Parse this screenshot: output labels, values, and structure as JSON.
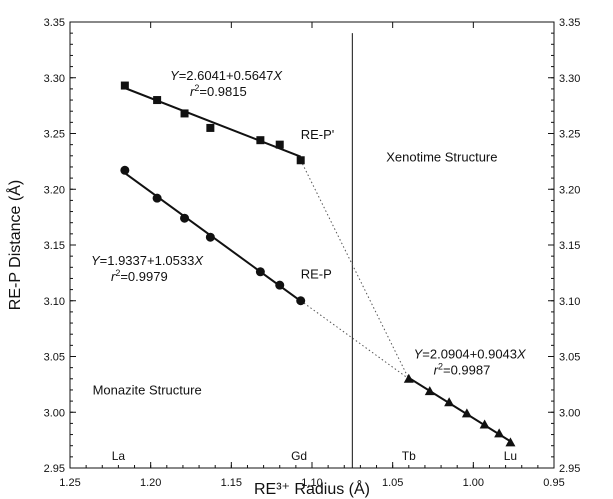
{
  "chart_data": {
    "type": "scatter",
    "xlabel": "RE³⁺ Radius (Å)",
    "ylabel": "RE-P Distance (Å)",
    "xlim": [
      1.25,
      0.95
    ],
    "ylim": [
      2.95,
      3.35
    ],
    "x_reversed": true,
    "right_axis_mirrored": true,
    "x_ticks": [
      "1.25",
      "1.20",
      "1.15",
      "1.10",
      "1.05",
      "1.00",
      "0.95"
    ],
    "y_ticks": [
      "2.95",
      "3.00",
      "3.05",
      "3.10",
      "3.15",
      "3.20",
      "3.25",
      "3.30",
      "3.35"
    ],
    "series": [
      {
        "name": "RE-P'",
        "marker": "square",
        "points": [
          {
            "x": 1.216,
            "y": 3.293
          },
          {
            "x": 1.196,
            "y": 3.28
          },
          {
            "x": 1.179,
            "y": 3.268
          },
          {
            "x": 1.163,
            "y": 3.255
          },
          {
            "x": 1.132,
            "y": 3.244
          },
          {
            "x": 1.12,
            "y": 3.24
          },
          {
            "x": 1.107,
            "y": 3.226
          }
        ],
        "fit": {
          "intercept": 2.6041,
          "slope": 0.5647,
          "x_range": [
            1.216,
            1.107
          ]
        }
      },
      {
        "name": "RE-P",
        "marker": "circle",
        "points": [
          {
            "x": 1.216,
            "y": 3.217
          },
          {
            "x": 1.196,
            "y": 3.192
          },
          {
            "x": 1.179,
            "y": 3.174
          },
          {
            "x": 1.163,
            "y": 3.157
          },
          {
            "x": 1.132,
            "y": 3.126
          },
          {
            "x": 1.12,
            "y": 3.114
          },
          {
            "x": 1.107,
            "y": 3.1
          }
        ],
        "fit": {
          "intercept": 1.9337,
          "slope": 1.0533,
          "x_range": [
            1.216,
            1.107
          ]
        }
      },
      {
        "name": "",
        "marker": "triangle",
        "points": [
          {
            "x": 1.04,
            "y": 3.03
          },
          {
            "x": 1.027,
            "y": 3.019
          },
          {
            "x": 1.015,
            "y": 3.009
          },
          {
            "x": 1.004,
            "y": 2.999
          },
          {
            "x": 0.993,
            "y": 2.989
          },
          {
            "x": 0.984,
            "y": 2.981
          },
          {
            "x": 0.977,
            "y": 2.973
          }
        ],
        "fit": {
          "intercept": 2.0904,
          "slope": 0.9043,
          "x_range": [
            1.04,
            0.977
          ]
        }
      }
    ],
    "dotted_connectors": [
      {
        "from": {
          "x": 1.107,
          "y": 3.226
        },
        "to": {
          "x": 1.04,
          "y": 3.03
        }
      },
      {
        "from": {
          "x": 1.107,
          "y": 3.1
        },
        "to": {
          "x": 1.04,
          "y": 3.03
        }
      }
    ],
    "boundary_line": {
      "x": 1.075,
      "y_range": [
        2.95,
        3.34
      ]
    },
    "equations": [
      {
        "y_prefix": "Y",
        "rhs_a": "=2.6041+0.5647",
        "x_var": "X",
        "r2": "=0.9815",
        "x": 1.188,
        "y": 3.298
      },
      {
        "y_prefix": "Y",
        "rhs_a": "=1.9337+1.0533",
        "x_var": "X",
        "r2": "=0.9979",
        "x": 1.237,
        "y": 3.132
      },
      {
        "y_prefix": "Y",
        "rhs_a": "=2.0904+0.9043",
        "x_var": "X",
        "r2": "=0.9987",
        "x": 1.037,
        "y": 3.048
      }
    ],
    "annotations": [
      {
        "text": "RE-P'",
        "x": 1.107,
        "y": 3.245
      },
      {
        "text": "RE-P",
        "x": 1.107,
        "y": 3.12
      },
      {
        "text": "Xenotime Structure",
        "x": 1.054,
        "y": 3.225
      },
      {
        "text": "Monazite Structure",
        "x": 1.236,
        "y": 3.016
      }
    ],
    "element_labels": [
      {
        "text": "La",
        "x": 1.22
      },
      {
        "text": "Gd",
        "x": 1.108
      },
      {
        "text": "Tb",
        "x": 1.04
      },
      {
        "text": "Lu",
        "x": 0.977
      }
    ]
  }
}
